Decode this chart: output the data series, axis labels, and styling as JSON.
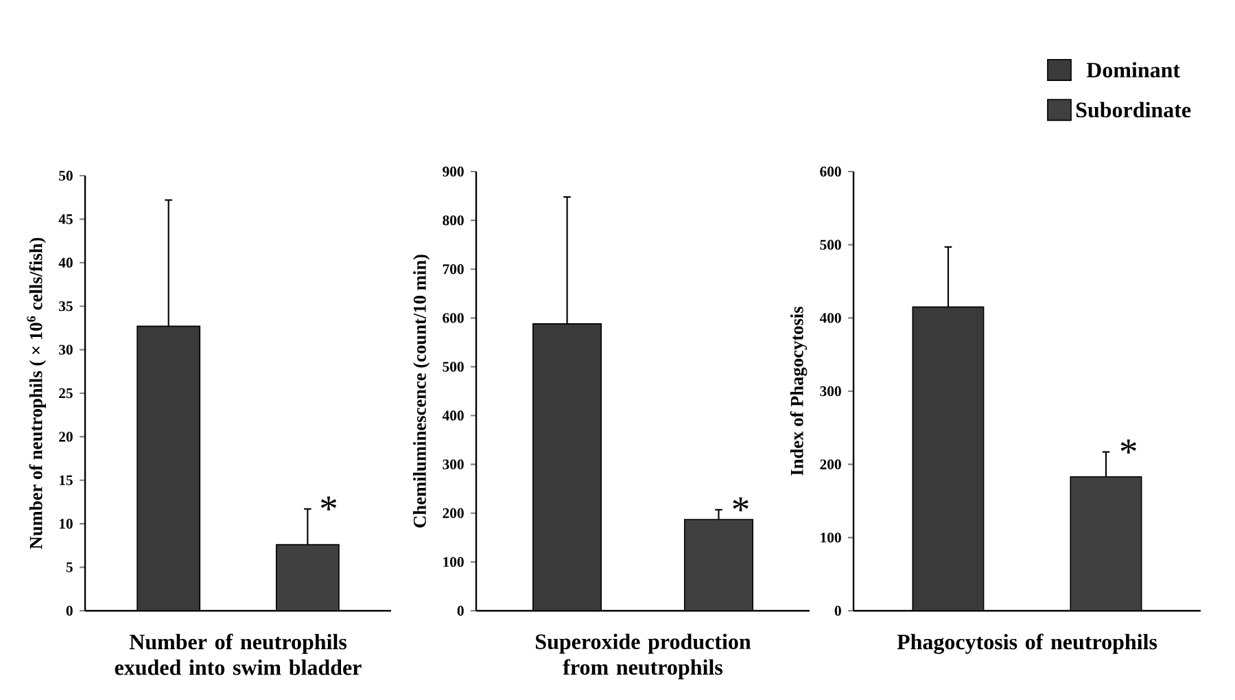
{
  "chart_data": [
    {
      "type": "bar",
      "categories": [
        null,
        null
      ],
      "ylabel": "Number of  neutrophils ( × 10$^{6}$ cells/fish)",
      "xlabel": "Number of neutrophils exuded into swim bladder",
      "ylim": [
        0,
        50
      ],
      "yticks": [
        0,
        5,
        10,
        15,
        20,
        25,
        30,
        35,
        40,
        45,
        50
      ],
      "tick_labels": "y",
      "series": [
        {
          "color": "#3a3a3a",
          "values": [
            32.7,
            null
          ],
          "errors": [
            14.5,
            null
          ]
        },
        {
          "color": "#404040",
          "values": [
            null,
            7.6
          ],
          "errors": [
            null,
            4.1
          ]
        }
      ],
      "annotations": [
        "*"
      ]
    },
    {
      "type": "bar",
      "categories": [
        null,
        null
      ],
      "ylabel": "Chemiluminescence (count/10 min)",
      "xlabel": "Superoxide production from neutrophils",
      "ylim": [
        0,
        900
      ],
      "yticks": [
        0,
        100,
        200,
        300,
        400,
        500,
        600,
        700,
        800,
        900
      ],
      "tick_labels": "y",
      "series": [
        {
          "color": "#3a3a3a",
          "values": [
            588,
            null
          ],
          "errors": [
            260,
            null
          ]
        },
        {
          "color": "#404040",
          "values": [
            null,
            187
          ],
          "errors": [
            null,
            20
          ]
        }
      ],
      "annotations": [
        "*"
      ]
    },
    {
      "type": "bar",
      "categories": [
        null,
        null
      ],
      "ylabel": "Index of Phagocytosis",
      "xlabel": "Phagocytosis of neutrophils",
      "ylim": [
        0,
        600
      ],
      "yticks": [
        0,
        100,
        200,
        300,
        400,
        500,
        600
      ],
      "tick_labels": "y",
      "legend": "top right",
      "series": [
        {
          "name": "Dominant",
          "color": "#3a3a3a",
          "values": [
            415,
            null
          ],
          "errors": [
            82,
            null
          ]
        },
        {
          "name": "Subordinate",
          "color": "#404040",
          "values": [
            null,
            183
          ],
          "errors": [
            null,
            34
          ]
        }
      ],
      "annotations": [
        "*"
      ]
    }
  ]
}
